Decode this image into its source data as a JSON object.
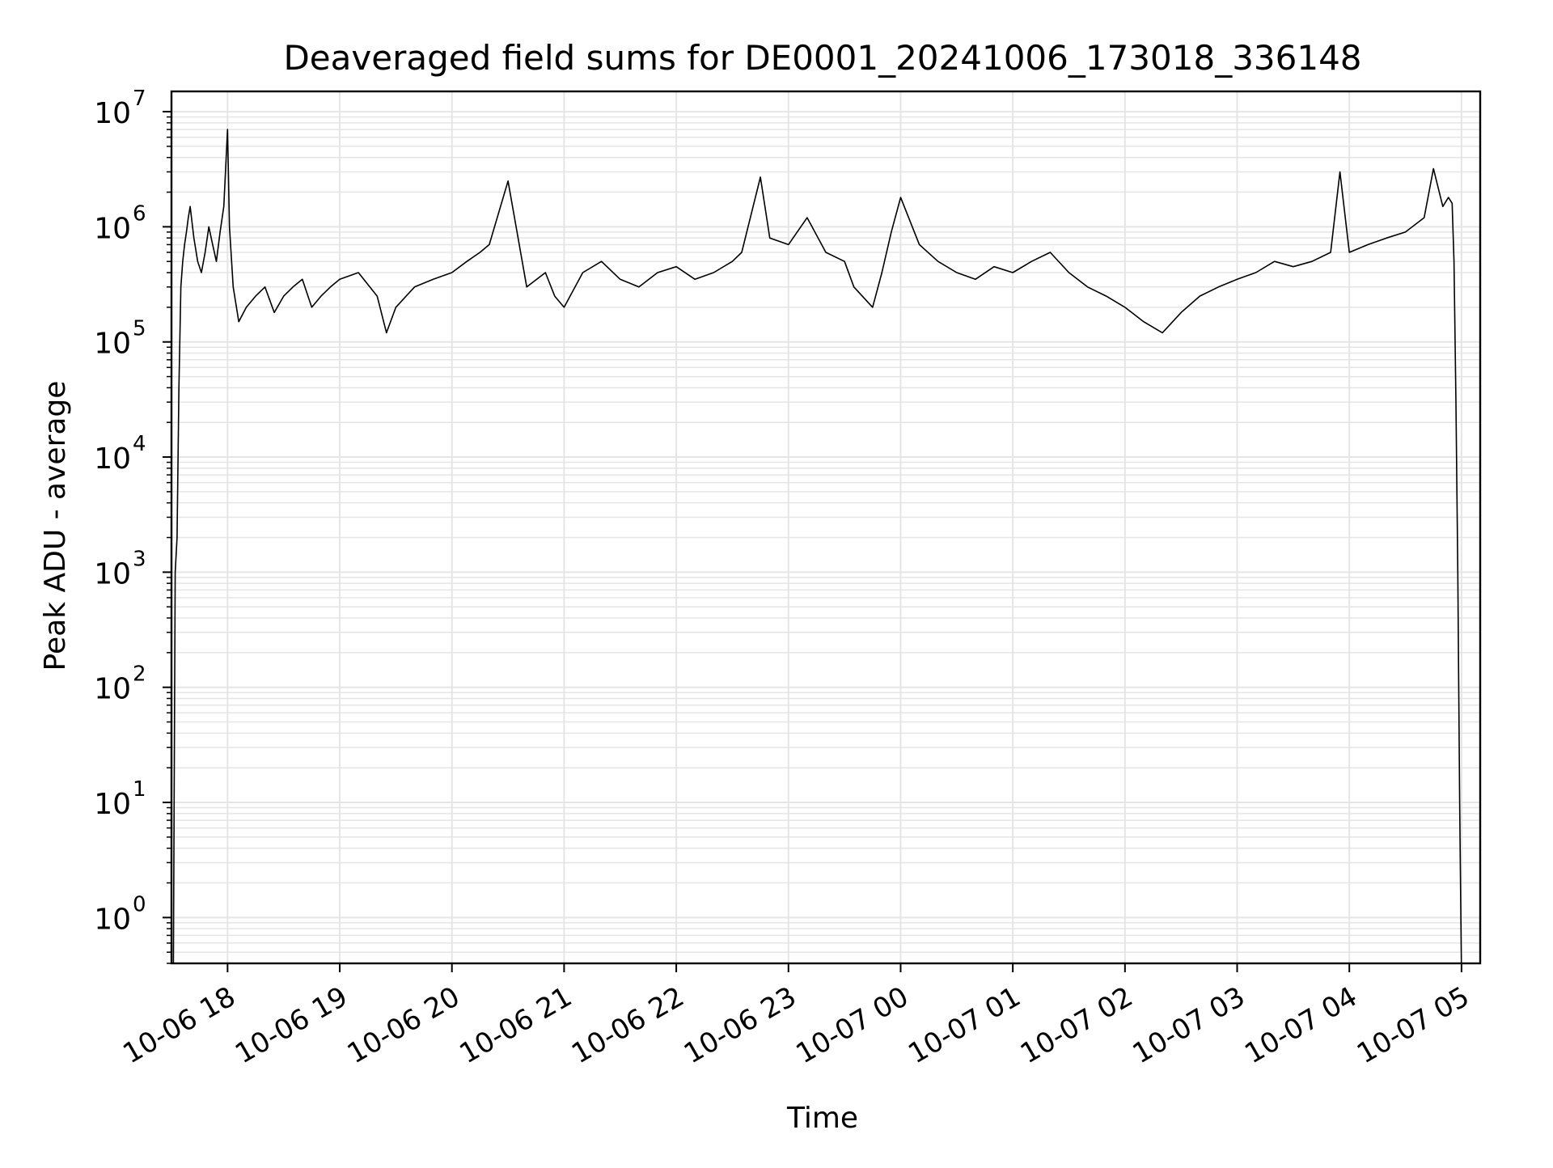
{
  "chart_data": {
    "type": "line",
    "title": "Deaveraged field sums for DE0001_20241006_173018_336148",
    "xlabel": "Time",
    "ylabel": "Peak ADU - average",
    "yscale": "log",
    "ylim": [
      0.4,
      15000000
    ],
    "xlim": [
      "2024-10-06 17:30",
      "2024-10-07 05:10"
    ],
    "grid": true,
    "legend": "none",
    "line_color": "#000000",
    "grid_color": "#e5e5e5",
    "x_ticks": [
      {
        "value": "2024-10-06 18:00",
        "label": "10-06 18"
      },
      {
        "value": "2024-10-06 19:00",
        "label": "10-06 19"
      },
      {
        "value": "2024-10-06 20:00",
        "label": "10-06 20"
      },
      {
        "value": "2024-10-06 21:00",
        "label": "10-06 21"
      },
      {
        "value": "2024-10-06 22:00",
        "label": "10-06 22"
      },
      {
        "value": "2024-10-06 23:00",
        "label": "10-06 23"
      },
      {
        "value": "2024-10-07 00:00",
        "label": "10-07 00"
      },
      {
        "value": "2024-10-07 01:00",
        "label": "10-07 01"
      },
      {
        "value": "2024-10-07 02:00",
        "label": "10-07 02"
      },
      {
        "value": "2024-10-07 03:00",
        "label": "10-07 03"
      },
      {
        "value": "2024-10-07 04:00",
        "label": "10-07 04"
      },
      {
        "value": "2024-10-07 05:00",
        "label": "10-07 05"
      }
    ],
    "y_ticks": [
      {
        "value": 1,
        "base": "10",
        "exp": "0"
      },
      {
        "value": 10,
        "base": "10",
        "exp": "1"
      },
      {
        "value": 100,
        "base": "10",
        "exp": "2"
      },
      {
        "value": 1000,
        "base": "10",
        "exp": "3"
      },
      {
        "value": 10000,
        "base": "10",
        "exp": "4"
      },
      {
        "value": 100000,
        "base": "10",
        "exp": "5"
      },
      {
        "value": 1000000,
        "base": "10",
        "exp": "6"
      },
      {
        "value": 10000000,
        "base": "10",
        "exp": "7"
      }
    ],
    "series": [
      {
        "x": [
          "2024-10-06 17:31",
          "2024-10-06 17:32",
          "2024-10-06 17:33",
          "2024-10-06 17:34",
          "2024-10-06 17:35",
          "2024-10-06 17:36",
          "2024-10-06 17:37",
          "2024-10-06 17:38",
          "2024-10-06 17:39",
          "2024-10-06 17:40",
          "2024-10-06 17:42",
          "2024-10-06 17:44",
          "2024-10-06 17:46",
          "2024-10-06 17:48",
          "2024-10-06 17:50",
          "2024-10-06 17:52",
          "2024-10-06 17:54",
          "2024-10-06 17:56",
          "2024-10-06 17:58",
          "2024-10-06 18:00",
          "2024-10-06 18:01",
          "2024-10-06 18:03",
          "2024-10-06 18:06",
          "2024-10-06 18:10",
          "2024-10-06 18:15",
          "2024-10-06 18:20",
          "2024-10-06 18:25",
          "2024-10-06 18:30",
          "2024-10-06 18:35",
          "2024-10-06 18:40",
          "2024-10-06 18:45",
          "2024-10-06 18:50",
          "2024-10-06 18:55",
          "2024-10-06 19:00",
          "2024-10-06 19:10",
          "2024-10-06 19:20",
          "2024-10-06 19:25",
          "2024-10-06 19:30",
          "2024-10-06 19:40",
          "2024-10-06 19:50",
          "2024-10-06 20:00",
          "2024-10-06 20:08",
          "2024-10-06 20:15",
          "2024-10-06 20:20",
          "2024-10-06 20:30",
          "2024-10-06 20:40",
          "2024-10-06 20:50",
          "2024-10-06 20:55",
          "2024-10-06 21:00",
          "2024-10-06 21:10",
          "2024-10-06 21:20",
          "2024-10-06 21:30",
          "2024-10-06 21:40",
          "2024-10-06 21:50",
          "2024-10-06 22:00",
          "2024-10-06 22:10",
          "2024-10-06 22:20",
          "2024-10-06 22:30",
          "2024-10-06 22:35",
          "2024-10-06 22:45",
          "2024-10-06 22:50",
          "2024-10-06 23:00",
          "2024-10-06 23:10",
          "2024-10-06 23:20",
          "2024-10-06 23:30",
          "2024-10-06 23:35",
          "2024-10-06 23:45",
          "2024-10-06 23:50",
          "2024-10-06 23:55",
          "2024-10-07 00:00",
          "2024-10-07 00:10",
          "2024-10-07 00:20",
          "2024-10-07 00:30",
          "2024-10-07 00:40",
          "2024-10-07 00:50",
          "2024-10-07 01:00",
          "2024-10-07 01:10",
          "2024-10-07 01:20",
          "2024-10-07 01:30",
          "2024-10-07 01:40",
          "2024-10-07 01:50",
          "2024-10-07 02:00",
          "2024-10-07 02:10",
          "2024-10-07 02:20",
          "2024-10-07 02:30",
          "2024-10-07 02:40",
          "2024-10-07 02:50",
          "2024-10-07 03:00",
          "2024-10-07 03:10",
          "2024-10-07 03:20",
          "2024-10-07 03:30",
          "2024-10-07 03:40",
          "2024-10-07 03:50",
          "2024-10-07 03:55",
          "2024-10-07 04:00",
          "2024-10-07 04:10",
          "2024-10-07 04:20",
          "2024-10-07 04:30",
          "2024-10-07 04:40",
          "2024-10-07 04:45",
          "2024-10-07 04:50",
          "2024-10-07 04:53",
          "2024-10-07 04:55",
          "2024-10-07 04:56",
          "2024-10-07 04:57",
          "2024-10-07 04:58",
          "2024-10-07 04:59",
          "2024-10-07 05:00"
        ],
        "values": [
          0.3,
          1000,
          2000,
          40000,
          300000,
          500000,
          700000,
          900000,
          1200000,
          1500000,
          800000,
          500000,
          400000,
          600000,
          1000000,
          700000,
          500000,
          900000,
          1500000,
          7000000,
          1000000,
          300000,
          150000,
          200000,
          250000,
          300000,
          180000,
          250000,
          300000,
          350000,
          200000,
          250000,
          300000,
          350000,
          400000,
          250000,
          120000,
          200000,
          300000,
          350000,
          400000,
          500000,
          600000,
          700000,
          2500000,
          300000,
          400000,
          250000,
          200000,
          400000,
          500000,
          350000,
          300000,
          400000,
          450000,
          350000,
          400000,
          500000,
          600000,
          2700000,
          800000,
          700000,
          1200000,
          600000,
          500000,
          300000,
          200000,
          400000,
          900000,
          1800000,
          700000,
          500000,
          400000,
          350000,
          450000,
          400000,
          500000,
          600000,
          400000,
          300000,
          250000,
          200000,
          150000,
          120000,
          180000,
          250000,
          300000,
          350000,
          400000,
          500000,
          450000,
          500000,
          600000,
          3000000,
          600000,
          700000,
          800000,
          900000,
          1200000,
          3200000,
          1500000,
          1800000,
          1600000,
          500000,
          30000,
          1000,
          10,
          0.3
        ]
      }
    ]
  }
}
